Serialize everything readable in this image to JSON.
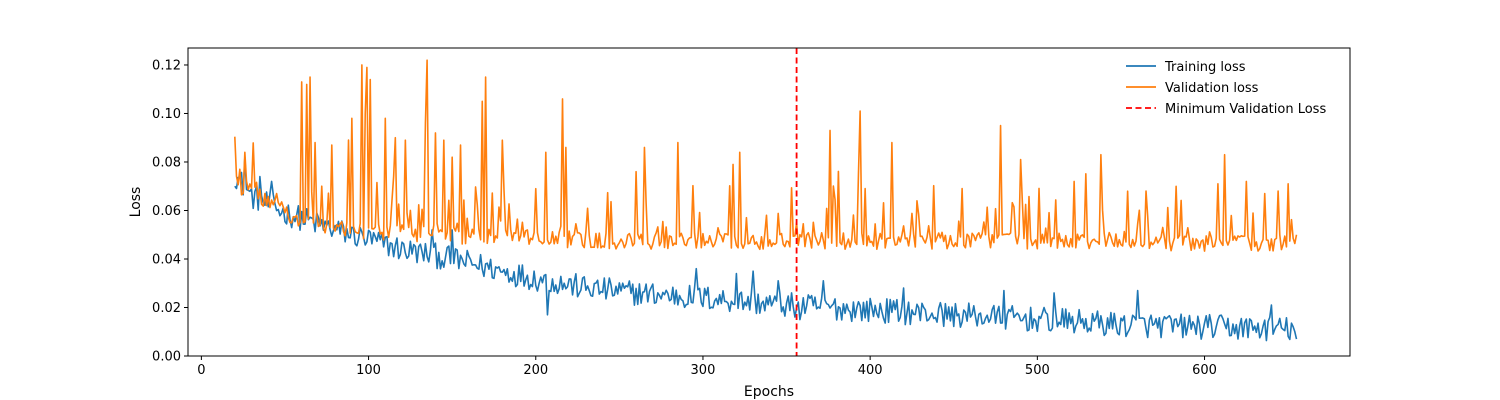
{
  "chart_data": {
    "type": "line",
    "title": "",
    "xlabel": "Epochs",
    "ylabel": "Loss",
    "xlim": [
      -8,
      687
    ],
    "ylim": [
      0.0,
      0.127
    ],
    "xticks": [
      0,
      100,
      200,
      300,
      400,
      500,
      600
    ],
    "yticks": [
      0.0,
      0.02,
      0.04,
      0.06,
      0.08,
      0.1,
      0.12
    ],
    "xtick_labels": [
      "0",
      "100",
      "200",
      "300",
      "400",
      "500",
      "600"
    ],
    "ytick_labels": [
      "0.00",
      "0.02",
      "0.04",
      "0.06",
      "0.08",
      "0.10",
      "0.12"
    ],
    "grid": false,
    "legend_position": "top-right",
    "x_start": 20,
    "x_end": 655,
    "series": [
      {
        "name": "Training loss",
        "color": "#1f77b4",
        "style": "solid",
        "trend_points": [
          [
            20,
            0.075
          ],
          [
            30,
            0.066
          ],
          [
            50,
            0.059
          ],
          [
            80,
            0.052
          ],
          [
            100,
            0.048
          ],
          [
            120,
            0.044
          ],
          [
            150,
            0.04
          ],
          [
            180,
            0.035
          ],
          [
            200,
            0.032
          ],
          [
            230,
            0.028
          ],
          [
            260,
            0.026
          ],
          [
            300,
            0.024
          ],
          [
            350,
            0.021
          ],
          [
            400,
            0.019
          ],
          [
            450,
            0.017
          ],
          [
            500,
            0.015
          ],
          [
            550,
            0.013
          ],
          [
            600,
            0.012
          ],
          [
            655,
            0.011
          ]
        ],
        "noise_amplitude": 0.004,
        "spikes": [
          [
            26,
            0.082
          ],
          [
            35,
            0.074
          ],
          [
            42,
            0.072
          ],
          [
            138,
            0.052
          ],
          [
            150,
            0.052
          ],
          [
            207,
            0.017
          ],
          [
            296,
            0.036
          ],
          [
            320,
            0.034
          ],
          [
            330,
            0.035
          ],
          [
            345,
            0.031
          ],
          [
            358,
            0.015
          ],
          [
            372,
            0.031
          ],
          [
            420,
            0.028
          ],
          [
            480,
            0.027
          ],
          [
            510,
            0.026
          ],
          [
            560,
            0.027
          ],
          [
            640,
            0.021
          ]
        ],
        "end_value": 0.007
      },
      {
        "name": "Validation loss",
        "color": "#ff7f0e",
        "style": "solid",
        "trend_points": [
          [
            20,
            0.072
          ],
          [
            40,
            0.064
          ],
          [
            60,
            0.056
          ],
          [
            100,
            0.052
          ],
          [
            150,
            0.05
          ],
          [
            200,
            0.049
          ],
          [
            250,
            0.048
          ],
          [
            300,
            0.048
          ],
          [
            350,
            0.048
          ],
          [
            400,
            0.048
          ],
          [
            450,
            0.048
          ],
          [
            500,
            0.048
          ],
          [
            550,
            0.048
          ],
          [
            600,
            0.047
          ],
          [
            655,
            0.047
          ]
        ],
        "noise_amplitude": 0.005,
        "spikes": [
          [
            23,
            0.077
          ],
          [
            26,
            0.084
          ],
          [
            60,
            0.113
          ],
          [
            63,
            0.112
          ],
          [
            65,
            0.115
          ],
          [
            68,
            0.088
          ],
          [
            78,
            0.087
          ],
          [
            90,
            0.098
          ],
          [
            96,
            0.12
          ],
          [
            98,
            0.1
          ],
          [
            99,
            0.119
          ],
          [
            101,
            0.114
          ],
          [
            110,
            0.098
          ],
          [
            116,
            0.09
          ],
          [
            122,
            0.089
          ],
          [
            134,
            0.096
          ],
          [
            135,
            0.122
          ],
          [
            140,
            0.092
          ],
          [
            145,
            0.089
          ],
          [
            150,
            0.082
          ],
          [
            155,
            0.087
          ],
          [
            168,
            0.105
          ],
          [
            170,
            0.115
          ],
          [
            180,
            0.089
          ],
          [
            200,
            0.069
          ],
          [
            206,
            0.084
          ],
          [
            216,
            0.106
          ],
          [
            218,
            0.086
          ],
          [
            260,
            0.076
          ],
          [
            265,
            0.086
          ],
          [
            285,
            0.088
          ],
          [
            318,
            0.079
          ],
          [
            322,
            0.084
          ],
          [
            338,
            0.058
          ],
          [
            358,
            0.05
          ],
          [
            376,
            0.093
          ],
          [
            394,
            0.101
          ],
          [
            413,
            0.088
          ],
          [
            478,
            0.095
          ],
          [
            490,
            0.081
          ],
          [
            522,
            0.072
          ],
          [
            538,
            0.083
          ],
          [
            565,
            0.068
          ],
          [
            583,
            0.07
          ],
          [
            608,
            0.071
          ],
          [
            612,
            0.083
          ],
          [
            625,
            0.072
          ],
          [
            636,
            0.067
          ],
          [
            644,
            0.068
          ],
          [
            650,
            0.071
          ]
        ],
        "end_value": 0.05
      },
      {
        "name": "Minimum Validation Loss",
        "color": "#ff0000",
        "style": "dashed",
        "x": 356
      }
    ]
  }
}
